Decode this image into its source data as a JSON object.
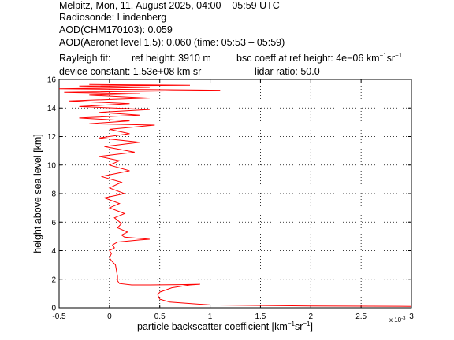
{
  "header": {
    "line1": "Melpitz, Mon, 11. August 2025, 04:00 – 05:59 UTC",
    "line2": "Radiosonde: Lindenberg",
    "line3": "AOD(CHM170103): 0.059",
    "line4": "AOD(Aeronet level 1.5): 0.060   (time: 05:53 – 05:59)",
    "rayleigh_label": "Rayleigh fit:",
    "ref_height": "ref height: 3910 m",
    "bsc_coeff_pre": "bsc coeff at ref height: 4e−06 km",
    "bsc_coeff_exp1": "−1",
    "bsc_coeff_mid": "sr",
    "bsc_coeff_exp2": "−1",
    "device_constant": "device constant: 1.53e+08 km sr",
    "lidar_ratio": "lidar ratio: 50.0"
  },
  "chart_data": {
    "type": "line",
    "xlabel_main": "particle backscatter coefficient [km",
    "xlabel_exp1": "−1",
    "xlabel_mid": "sr",
    "xlabel_exp2": "−1",
    "xlabel_end": "]",
    "ylabel": "height above sea level [km]",
    "x_multiplier_base": "x 10",
    "x_multiplier_exp": "-3",
    "xlim": [
      -0.5,
      3
    ],
    "ylim": [
      0,
      16
    ],
    "x_ticks": [
      -0.5,
      0,
      0.5,
      1,
      1.5,
      2,
      2.5,
      3
    ],
    "x_tick_labels": [
      "-0.5",
      "0",
      "0.5",
      "1",
      "1.5",
      "2",
      "2.5",
      "3"
    ],
    "y_ticks": [
      0,
      2,
      4,
      6,
      8,
      10,
      12,
      14,
      16
    ],
    "y_tick_labels": [
      "0",
      "2",
      "4",
      "6",
      "8",
      "10",
      "12",
      "14",
      "16"
    ],
    "grid": true,
    "line_color": "#ff0000",
    "series": [
      {
        "x": [
          3.0,
          2.0,
          1.0,
          0.6,
          0.5,
          0.48,
          0.5,
          0.62,
          0.8,
          0.9,
          0.7,
          0.4,
          0.22,
          0.1,
          0.08,
          0.08,
          0.07,
          0.06,
          0.02,
          0.0,
          0.02,
          0.0,
          0.05,
          0.03,
          0.08,
          0.3,
          0.4,
          0.15,
          0.12,
          0.18,
          0.08,
          0.12,
          0.05,
          0.15,
          0.0,
          0.1,
          -0.05,
          0.15,
          0.0,
          0.12,
          -0.08,
          0.2,
          0.0,
          0.1,
          -0.1,
          0.25,
          -0.05,
          0.3,
          -0.1,
          0.2,
          0.0,
          0.45,
          -0.2,
          0.2,
          -0.3,
          0.3,
          -0.1,
          0.4,
          -0.3,
          0.2,
          -0.4,
          0.4,
          -0.2,
          0.3,
          -0.45,
          1.1,
          -0.5,
          0.4,
          -0.3,
          0.8,
          -0.2
        ],
        "y": [
          0.1,
          0.12,
          0.2,
          0.4,
          0.6,
          0.9,
          1.1,
          1.4,
          1.6,
          1.65,
          1.62,
          1.6,
          1.6,
          1.7,
          1.9,
          2.2,
          2.6,
          3.0,
          3.3,
          3.5,
          3.8,
          4.0,
          4.2,
          4.4,
          4.6,
          4.75,
          4.8,
          4.95,
          5.1,
          5.3,
          5.6,
          5.9,
          6.3,
          6.6,
          7.0,
          7.3,
          7.7,
          8.0,
          8.4,
          8.8,
          9.2,
          9.6,
          10.0,
          10.3,
          10.6,
          10.9,
          11.3,
          11.6,
          11.9,
          12.2,
          12.5,
          12.8,
          12.9,
          13.1,
          13.3,
          13.5,
          13.7,
          13.9,
          14.1,
          14.3,
          14.5,
          14.7,
          14.9,
          15.0,
          15.1,
          15.25,
          15.35,
          15.45,
          15.55,
          15.6,
          15.65
        ]
      }
    ]
  }
}
